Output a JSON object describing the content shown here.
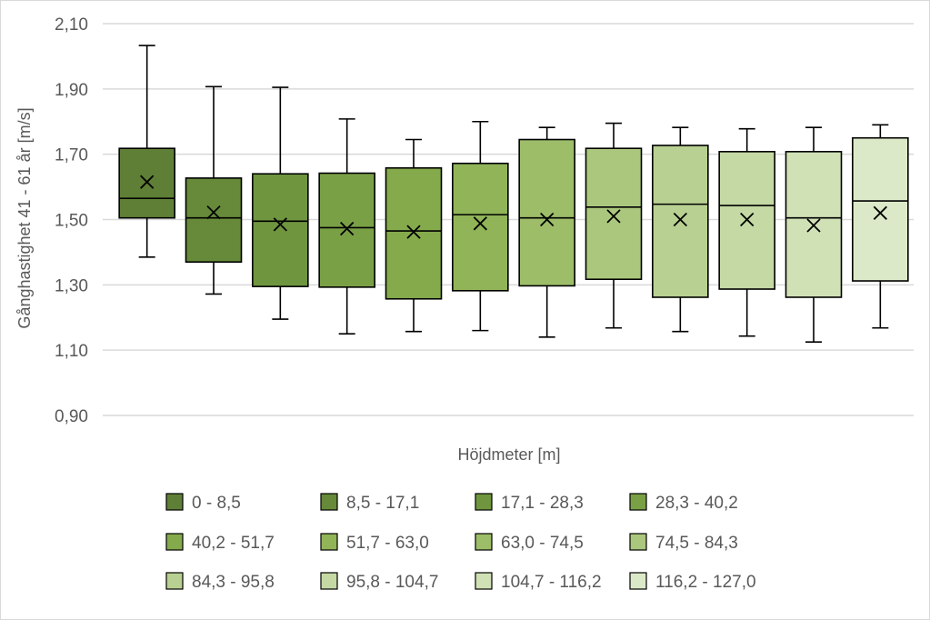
{
  "chart_data": {
    "type": "box",
    "title": "",
    "xlabel": "Höjdmeter [m]",
    "ylabel": "Gånghastighet 41 - 61 år [m/s]",
    "ylim": [
      0.9,
      2.1
    ],
    "yticks": [
      "0,90",
      "1,10",
      "1,30",
      "1,50",
      "1,70",
      "1,90",
      "2,10"
    ],
    "ytick_values": [
      0.9,
      1.1,
      1.3,
      1.5,
      1.7,
      1.9,
      2.1
    ],
    "grid": true,
    "legend_position": "bottom",
    "series": [
      {
        "name": "0 - 8,5",
        "color": "#5f7f36",
        "min": 1.385,
        "q1": 1.505,
        "median": 1.565,
        "q3": 1.718,
        "max": 2.033,
        "mean": 1.615
      },
      {
        "name": "8,5 - 17,1",
        "color": "#668a3a",
        "min": 1.272,
        "q1": 1.37,
        "median": 1.505,
        "q3": 1.627,
        "max": 1.907,
        "mean": 1.522
      },
      {
        "name": "17,1 - 28,3",
        "color": "#6f953f",
        "min": 1.195,
        "q1": 1.295,
        "median": 1.495,
        "q3": 1.64,
        "max": 1.905,
        "mean": 1.485
      },
      {
        "name": "28,3 - 40,2",
        "color": "#7aa046",
        "min": 1.15,
        "q1": 1.293,
        "median": 1.475,
        "q3": 1.642,
        "max": 1.808,
        "mean": 1.472
      },
      {
        "name": "40,2 - 51,7",
        "color": "#84aa4c",
        "min": 1.157,
        "q1": 1.257,
        "median": 1.465,
        "q3": 1.658,
        "max": 1.745,
        "mean": 1.462
      },
      {
        "name": "51,7 - 63,0",
        "color": "#90b457",
        "min": 1.16,
        "q1": 1.282,
        "median": 1.515,
        "q3": 1.672,
        "max": 1.8,
        "mean": 1.488
      },
      {
        "name": "63,0 - 74,5",
        "color": "#9dbd69",
        "min": 1.14,
        "q1": 1.297,
        "median": 1.505,
        "q3": 1.745,
        "max": 1.782,
        "mean": 1.5
      },
      {
        "name": "74,5 - 84,3",
        "color": "#abc77d",
        "min": 1.168,
        "q1": 1.317,
        "median": 1.538,
        "q3": 1.718,
        "max": 1.795,
        "mean": 1.51
      },
      {
        "name": "84,3 - 95,8",
        "color": "#b8d091",
        "min": 1.157,
        "q1": 1.262,
        "median": 1.547,
        "q3": 1.727,
        "max": 1.782,
        "mean": 1.5
      },
      {
        "name": "95,8 - 104,7",
        "color": "#c4d9a4",
        "min": 1.143,
        "q1": 1.287,
        "median": 1.543,
        "q3": 1.708,
        "max": 1.778,
        "mean": 1.5
      },
      {
        "name": "104,7 - 116,2",
        "color": "#d0e1b6",
        "min": 1.125,
        "q1": 1.262,
        "median": 1.505,
        "q3": 1.708,
        "max": 1.782,
        "mean": 1.482
      },
      {
        "name": "116,2 - 127,0",
        "color": "#dce9c8",
        "min": 1.168,
        "q1": 1.312,
        "median": 1.557,
        "q3": 1.75,
        "max": 1.79,
        "mean": 1.52
      }
    ]
  }
}
